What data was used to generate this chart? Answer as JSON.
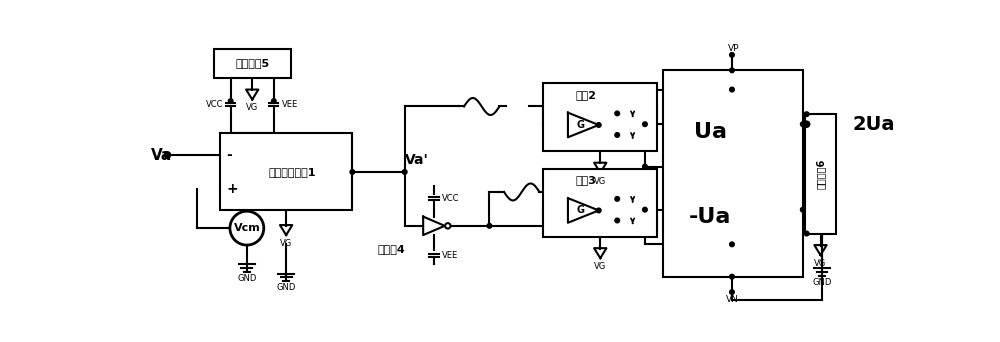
{
  "bg_color": "#ffffff",
  "line_color": "#000000",
  "lw": 1.5,
  "fig_width": 10.0,
  "fig_height": 3.42,
  "labels": {
    "Va": "Va",
    "Va_prime": "Va'",
    "Vcm": "Vcm",
    "diff_amp": "差分放大电路1",
    "op_power": "运放电源5",
    "inverter": "反相器4",
    "power_amp2": "功放2",
    "power_amp3": "功放3",
    "motor_power": "动力电源6",
    "Ua": "Ua",
    "neg_Ua": "-Ua",
    "output": "2Ua",
    "VCC": "VCC",
    "VEE": "VEE",
    "VG": "VG",
    "VP": "VP",
    "VN": "VN",
    "GND": "GND",
    "G": "G"
  }
}
